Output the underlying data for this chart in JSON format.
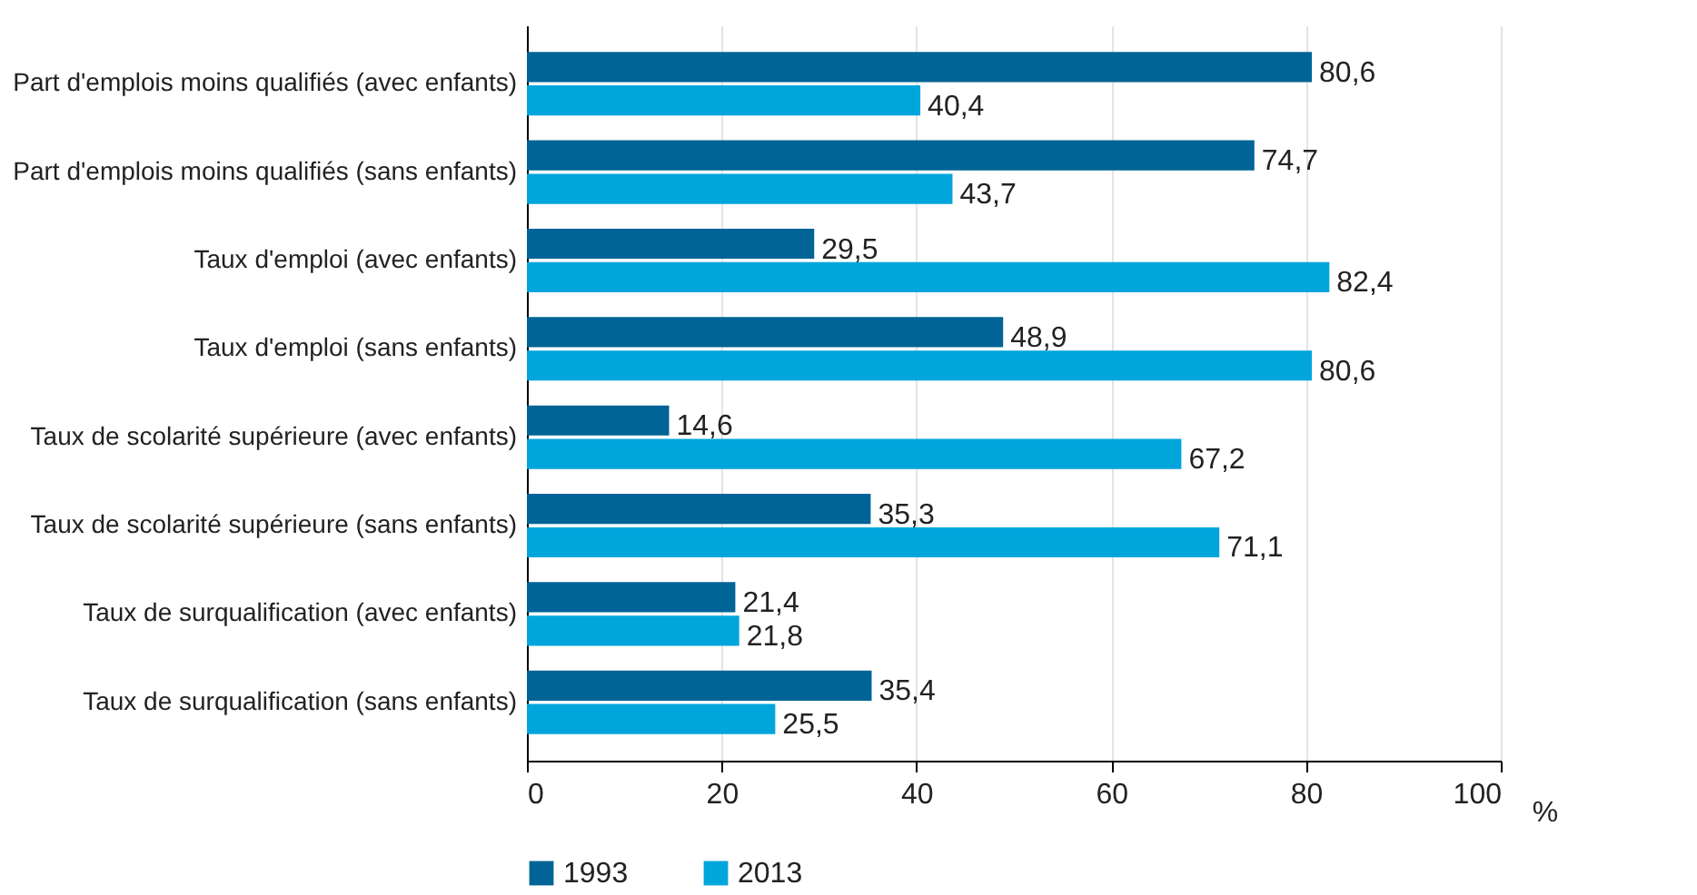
{
  "chart_data": {
    "type": "bar",
    "orientation": "horizontal",
    "xlabel": "%",
    "categories": [
      "Part d'emplois moins qualifiés (avec enfants)",
      "Part d'emplois moins qualifiés (sans enfants)",
      "Taux d'emploi (avec enfants)",
      "Taux d'emploi (sans enfants)",
      "Taux de scolarité supérieure (avec enfants)",
      "Taux de scolarité supérieure (sans enfants)",
      "Taux de surqualification (avec enfants)",
      "Taux de surqualification (sans enfants)"
    ],
    "series": [
      {
        "name": "1993",
        "color": "#006496",
        "values": [
          80.6,
          74.7,
          29.5,
          48.9,
          14.6,
          35.3,
          21.4,
          35.4
        ],
        "value_labels": [
          "80,6",
          "74,7",
          "29,5",
          "48,9",
          "14,6",
          "35,3",
          "21,4",
          "35,4"
        ]
      },
      {
        "name": "2013",
        "color": "#00a5dc",
        "values": [
          40.4,
          43.7,
          82.4,
          80.6,
          67.2,
          71.1,
          21.8,
          25.5
        ],
        "value_labels": [
          "40,4",
          "43,7",
          "82,4",
          "80,6",
          "67,2",
          "71,1",
          "21,8",
          "25,5"
        ]
      }
    ],
    "xlim": [
      0,
      100
    ],
    "xticks": [
      0,
      20,
      40,
      60,
      80,
      100
    ],
    "grid": "x",
    "legend": "bottom"
  }
}
